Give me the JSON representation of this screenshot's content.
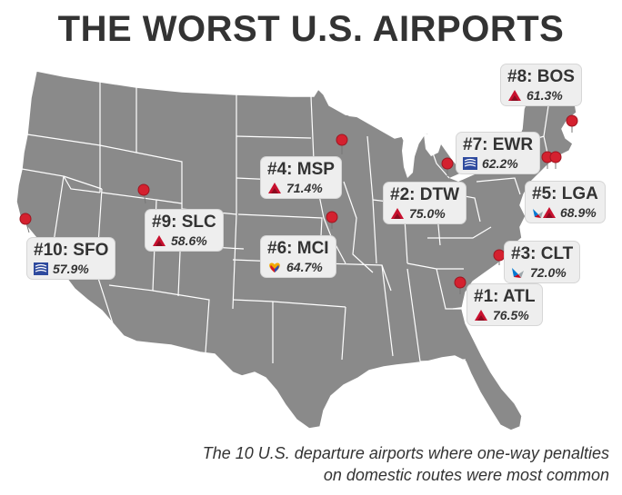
{
  "title": "THE WORST U.S. AIRPORTS",
  "caption_line1": "The 10 U.S. departure airports where one-way penalties",
  "caption_line2": "on domestic routes were most common",
  "colors": {
    "map_fill": "#8a8a8a",
    "border": "#ffffff",
    "pin": "#d4212f",
    "delta": "#c8102e",
    "united": "#2e4a9e",
    "southwest": "#f2a900",
    "american": "#0078d2"
  },
  "airports": [
    {
      "code": "#1: ATL",
      "pct": "76.5%",
      "airline": "delta-logo"
    },
    {
      "code": "#2: DTW",
      "pct": "75.0%",
      "airline": "delta-logo"
    },
    {
      "code": "#3: CLT",
      "pct": "72.0%",
      "airline": "american-logo"
    },
    {
      "code": "#4: MSP",
      "pct": "71.4%",
      "airline": "delta-logo"
    },
    {
      "code": "#5: LGA",
      "pct": "68.9%",
      "airline": "american-delta-logo"
    },
    {
      "code": "#6: MCI",
      "pct": "64.7%",
      "airline": "southwest-logo"
    },
    {
      "code": "#7: EWR",
      "pct": "62.2%",
      "airline": "united-logo"
    },
    {
      "code": "#8: BOS",
      "pct": "61.3%",
      "airline": "delta-logo"
    },
    {
      "code": "#9: SLC",
      "pct": "58.6%",
      "airline": "delta-logo"
    },
    {
      "code": "#10: SFO",
      "pct": "57.9%",
      "airline": "united-logo"
    }
  ]
}
